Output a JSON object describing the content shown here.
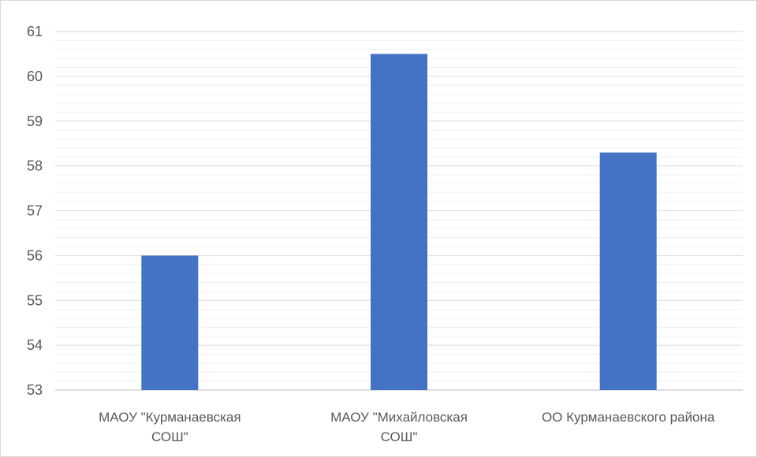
{
  "chart_data": {
    "type": "bar",
    "categories": [
      [
        "МАОУ \"Курманаевская",
        "СОШ\""
      ],
      [
        "МАОУ \"Михайловская",
        "СОШ\""
      ],
      [
        "ОО Курманаевского района"
      ]
    ],
    "values": [
      56.0,
      60.5,
      58.3
    ],
    "ylim": [
      53,
      61
    ],
    "yticks": [
      "53",
      "54",
      "55",
      "56",
      "57",
      "58",
      "59",
      "60",
      "61"
    ],
    "minor_grid_step": 0.2,
    "grid": true,
    "legend": "none",
    "title": "",
    "xlabel": "",
    "ylabel": "",
    "colors": {
      "bar": "#4472c4",
      "major_grid": "#d9d9d9",
      "minor_grid": "#f0f0f0",
      "axis": "#bfbfbf",
      "text": "#595959"
    }
  }
}
